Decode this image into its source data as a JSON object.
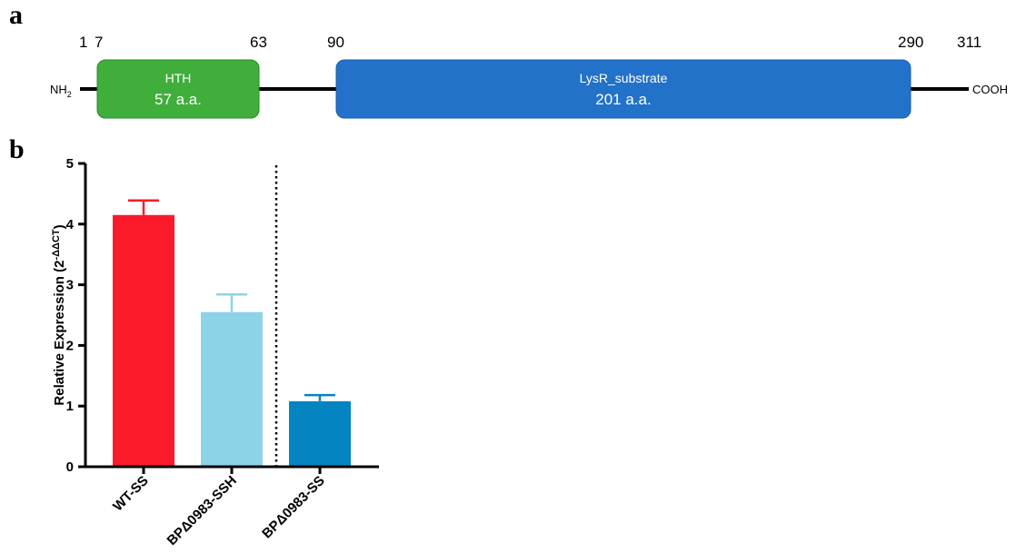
{
  "panel_a": {
    "letter": "a",
    "n_terminus": "NH",
    "n_terminus_sub": "2",
    "c_terminus": "COOH",
    "positions": [
      "1",
      "7",
      "63",
      "90",
      "290",
      "311"
    ],
    "domains": [
      {
        "name": "HTH",
        "length": "57 a.a.",
        "color": "#3fae3b"
      },
      {
        "name": "LysR_substrate",
        "length": "201 a.a.",
        "color": "#2272c9"
      }
    ]
  },
  "panel_b": {
    "letter": "b"
  },
  "chart_data": {
    "type": "bar",
    "categories": [
      "WT-SS",
      "BPΔ0983-SSH",
      "BPΔ0983-SS"
    ],
    "values": [
      4.15,
      2.55,
      1.08
    ],
    "errors": [
      0.24,
      0.29,
      0.1
    ],
    "colors": [
      "#fa1a2a",
      "#8dd3e8",
      "#0584c2"
    ],
    "ylabel_main": "Relative Expression (2",
    "ylabel_sup": "-ΔΔCT",
    "ylabel_close": ")",
    "ylim": [
      0,
      5
    ],
    "yticks": [
      "0",
      "1",
      "2",
      "3",
      "4",
      "5"
    ],
    "separator": "dotted vertical line between BPΔ0983-SSH and BPΔ0983-SS"
  }
}
